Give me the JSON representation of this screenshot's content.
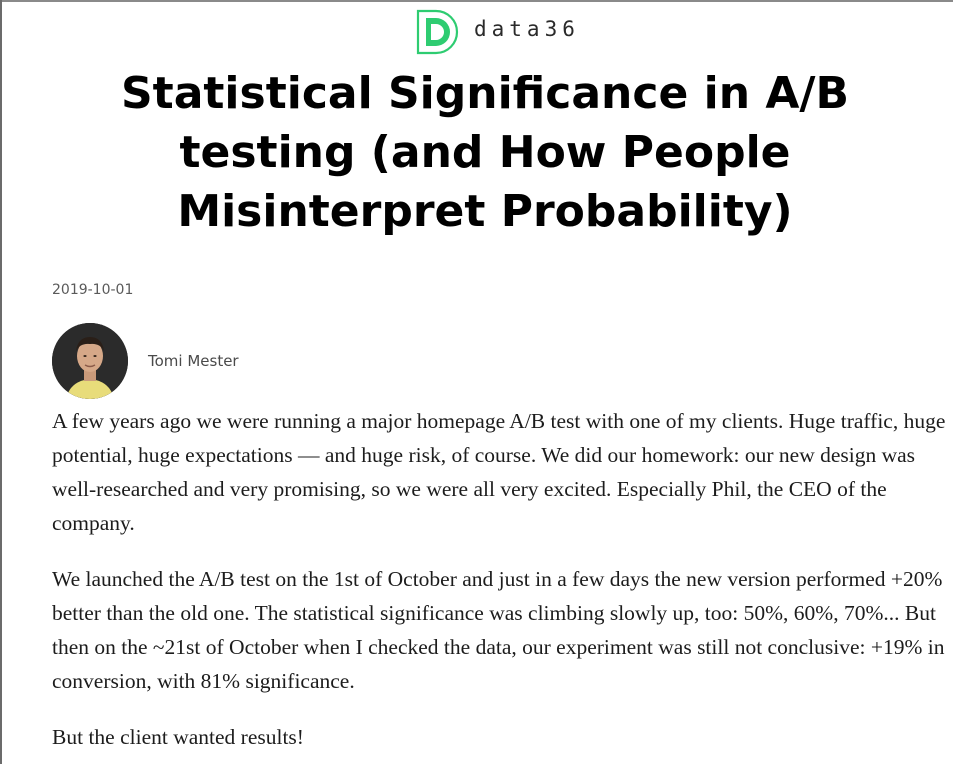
{
  "brand": {
    "name": "data36",
    "logo_letter": "D",
    "accent": "#2ecc71"
  },
  "article": {
    "title": "Statistical Significance in A/B testing (and How People Misinterpret Probability)",
    "date": "2019-10-01",
    "author": "Tomi Mester",
    "paragraphs": [
      "A few years ago we were running a major homepage A/B test with one of my clients. Huge traffic, huge potential, huge expectations — and huge risk, of course. We did our homework: our new design was well-researched and very promising, so we were all very excited. Especially Phil, the CEO of the company.",
      "We launched the A/B test on the 1st of October and just in a few days the new version performed +20% better than the old one. The statistical significance was climbing slowly up, too: 50%, 60%, 70%... But then on the ~21st of October when I checked the data, our experiment was still not conclusive: +19% in conversion, with 81% significance.",
      "But the client wanted results!"
    ]
  }
}
